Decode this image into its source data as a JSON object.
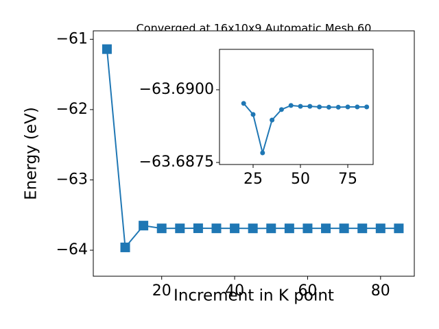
{
  "chart_data": [
    {
      "type": "line",
      "title": "Converged at 16x10x9 Automatic Mesh 60",
      "x_label": "Increment in K point",
      "y_label": "Energy (eV)",
      "xlim": [
        1.25,
        89.25
      ],
      "ylim": [
        -64.37,
        -60.88
      ],
      "xticks": [
        20,
        40,
        60,
        80
      ],
      "yticks": [
        {
          "value": -64,
          "label": "−64"
        },
        {
          "value": -63,
          "label": "−63"
        },
        {
          "value": -62,
          "label": "−62"
        },
        {
          "value": -61,
          "label": "−61"
        }
      ],
      "marker": "square",
      "series": [
        {
          "color": "#1f77b4",
          "x": [
            5,
            10,
            15,
            20,
            25,
            30,
            35,
            40,
            45,
            50,
            55,
            60,
            65,
            70,
            75,
            80,
            85
          ],
          "values": [
            -61.14,
            -63.96,
            -63.65,
            -63.6895,
            -63.6892,
            -63.6878,
            -63.689,
            -63.6893,
            -63.6895,
            -63.6894,
            -63.6894,
            -63.6894,
            -63.6894,
            -63.6894,
            -63.6894,
            -63.6894,
            -63.6894
          ]
        }
      ]
    },
    {
      "type": "line",
      "xlim": [
        7.25,
        88.4
      ],
      "ylim": [
        -63.68743,
        -63.69139
      ],
      "xticks": [
        25,
        50,
        75
      ],
      "yticks": [
        {
          "value": -63.6875,
          "label": "−63.6875"
        },
        {
          "value": -63.69,
          "label": "−63.6900"
        }
      ],
      "marker": "circle",
      "series": [
        {
          "color": "#1f77b4",
          "x": [
            20,
            25,
            30,
            35,
            40,
            45,
            50,
            55,
            60,
            65,
            70,
            75,
            80,
            85
          ],
          "values": [
            -63.68953,
            -63.68915,
            -63.68783,
            -63.68896,
            -63.68932,
            -63.68946,
            -63.68943,
            -63.68943,
            -63.68941,
            -63.6894,
            -63.6894,
            -63.68941,
            -63.68941,
            -63.68941
          ]
        }
      ]
    }
  ]
}
